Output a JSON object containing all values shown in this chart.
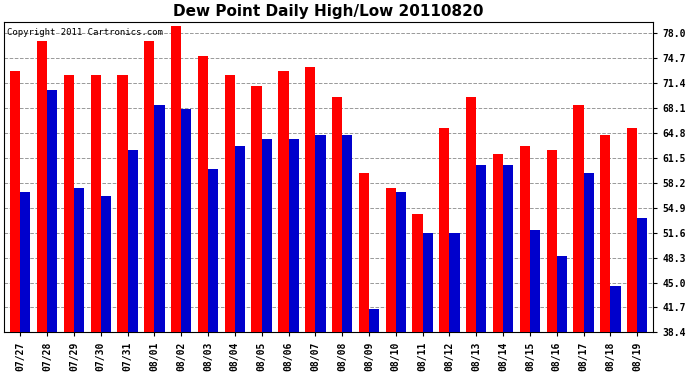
{
  "title": "Dew Point Daily High/Low 20110820",
  "copyright": "Copyright 2011 Cartronics.com",
  "dates": [
    "07/27",
    "07/28",
    "07/29",
    "07/30",
    "07/31",
    "08/01",
    "08/02",
    "08/03",
    "08/04",
    "08/05",
    "08/06",
    "08/07",
    "08/08",
    "08/09",
    "08/10",
    "08/11",
    "08/12",
    "08/13",
    "08/14",
    "08/15",
    "08/16",
    "08/17",
    "08/18",
    "08/19"
  ],
  "highs": [
    73.0,
    77.0,
    72.5,
    72.5,
    72.5,
    77.0,
    79.0,
    75.0,
    72.5,
    71.0,
    73.0,
    73.5,
    69.5,
    59.5,
    57.5,
    54.0,
    65.5,
    69.5,
    62.0,
    63.0,
    62.5,
    68.5,
    64.5,
    65.5
  ],
  "lows": [
    57.0,
    70.5,
    57.5,
    56.5,
    62.5,
    68.5,
    68.0,
    60.0,
    63.0,
    64.0,
    64.0,
    64.5,
    64.5,
    41.5,
    57.0,
    51.5,
    51.5,
    60.5,
    60.5,
    52.0,
    48.5,
    59.5,
    44.5,
    53.5
  ],
  "bar_color_high": "#ff0000",
  "bar_color_low": "#0000cc",
  "ylim_min": 38.4,
  "ylim_max": 79.5,
  "yticks": [
    38.4,
    41.7,
    45.0,
    48.3,
    51.6,
    54.9,
    58.2,
    61.5,
    64.8,
    68.1,
    71.4,
    74.7,
    78.0
  ],
  "background_color": "#ffffff",
  "plot_bg_color": "#ffffff",
  "grid_color": "#999999",
  "title_fontsize": 11,
  "tick_fontsize": 7,
  "copyright_fontsize": 6.5
}
